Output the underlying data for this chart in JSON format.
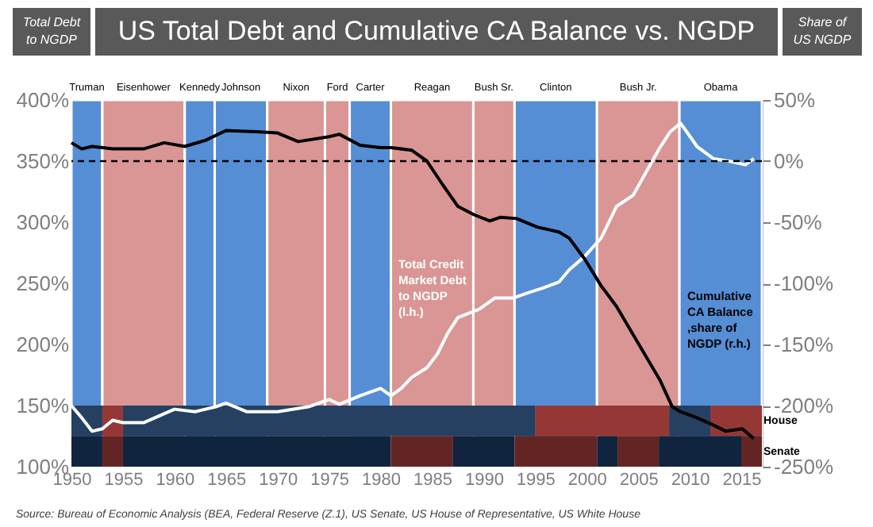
{
  "chart_data": {
    "type": "line",
    "title": "US Total Debt and Cumulative CA Balance vs. NGDP",
    "ylabel": "Total Debt to NGDP",
    "y2label": "Share of US NGDP",
    "xlim": [
      1950,
      2017
    ],
    "xticks": [
      1950,
      1955,
      1960,
      1965,
      1970,
      1975,
      1980,
      1985,
      1990,
      1995,
      2000,
      2005,
      2010,
      2015
    ],
    "ylim": [
      100,
      400
    ],
    "yticks": [
      {
        "value": 100,
        "label": "100%"
      },
      {
        "value": 150,
        "label": "150%"
      },
      {
        "value": 200,
        "label": "200%"
      },
      {
        "value": 250,
        "label": "250%"
      },
      {
        "value": 300,
        "label": "300%"
      },
      {
        "value": 350,
        "label": "350%"
      },
      {
        "value": 400,
        "label": "400%"
      }
    ],
    "y2lim": [
      -250,
      50
    ],
    "y2ticks": [
      {
        "value": -250,
        "label": "-250%"
      },
      {
        "value": -200,
        "label": "-200%"
      },
      {
        "value": -150,
        "label": "-150%"
      },
      {
        "value": -100,
        "label": "-100%"
      },
      {
        "value": -50,
        "label": "-50%"
      },
      {
        "value": 0,
        "label": "0%"
      },
      {
        "value": 50,
        "label": "50%"
      }
    ],
    "grid": false,
    "legend": false,
    "marker": "none",
    "line_style": "solid",
    "series": [
      {
        "name": "Total Credit Market Debt to NGDP (l.h.)",
        "color": "#ffffff",
        "x": [
          1950,
          1951,
          1952,
          1953,
          1954,
          1955,
          1957,
          1960,
          1962,
          1964,
          1965,
          1967,
          1970,
          1973,
          1975,
          1976,
          1978,
          1980,
          1981,
          1982,
          1983,
          1984.5,
          1985.5,
          1986.5,
          1987.5,
          1989.6,
          1991.1,
          1992.9,
          1994.2,
          1995.7,
          1997.3,
          1998.3,
          1999.8,
          2001.4,
          2002.9,
          2004.5,
          2005.5,
          2007.1,
          2008.1,
          2009.1,
          2009.7,
          2010.7,
          2012.3,
          2013.8,
          2015.4,
          2016.2
        ],
        "values": [
          150,
          140,
          129,
          131,
          138,
          136,
          136,
          147,
          145,
          149,
          152,
          145,
          145,
          149,
          155,
          151,
          158,
          164,
          158,
          164,
          173,
          181,
          192,
          209,
          222,
          229,
          238,
          238,
          242,
          246,
          251,
          261,
          272,
          287,
          313,
          322,
          337,
          361,
          374,
          381,
          374,
          362,
          352,
          350,
          347,
          352
        ]
      },
      {
        "name": "Cumulative CA Balance ,share of NGDP (r.h.)",
        "color": "#000000",
        "axis": "y2",
        "x": [
          1950,
          1951,
          1952,
          1954,
          1957,
          1959,
          1961,
          1963,
          1965,
          1968,
          1970,
          1972,
          1975,
          1976,
          1978,
          1980,
          1981,
          1983,
          1984.5,
          1986,
          1987.5,
          1989.1,
          1990.6,
          1991.6,
          1993.2,
          1995.2,
          1997.3,
          1998.3,
          1999.8,
          2001.4,
          2002.9,
          2005,
          2007.1,
          2008.3,
          2009.1,
          2010.7,
          2012.3,
          2013.5,
          2015.1,
          2016.2
        ],
        "values": [
          15,
          10,
          12,
          10,
          10,
          15,
          12,
          17,
          25,
          24,
          23,
          16,
          20,
          22,
          13,
          11,
          11,
          9,
          0,
          -19,
          -37,
          -44,
          -49,
          -46,
          -47,
          -54,
          -58,
          -63,
          -80,
          -102,
          -119,
          -149,
          -179,
          -201,
          -205,
          -210,
          -216,
          -221,
          -219,
          -227
        ]
      }
    ],
    "ref_lines": [
      {
        "axis": "y2",
        "value": 0,
        "color": "#000000",
        "line_style": "dashed"
      }
    ],
    "bands": [
      {
        "axis": "x",
        "from": 1950,
        "to": 1953,
        "label": "Truman",
        "color": "#558ed5"
      },
      {
        "axis": "x",
        "from": 1953,
        "to": 1961,
        "label": "Eisenhower",
        "color": "#d99694"
      },
      {
        "axis": "x",
        "from": 1961,
        "to": 1963.9,
        "label": "Kennedy",
        "color": "#558ed5"
      },
      {
        "axis": "x",
        "from": 1963.9,
        "to": 1969,
        "label": "Johnson",
        "color": "#558ed5"
      },
      {
        "axis": "x",
        "from": 1969,
        "to": 1974.6,
        "label": "Nixon",
        "color": "#d99694"
      },
      {
        "axis": "x",
        "from": 1974.6,
        "to": 1977,
        "label": "Ford",
        "color": "#d99694"
      },
      {
        "axis": "x",
        "from": 1977,
        "to": 1981,
        "label": "Carter",
        "color": "#558ed5"
      },
      {
        "axis": "x",
        "from": 1981,
        "to": 1989,
        "label": "Reagan",
        "color": "#d99694"
      },
      {
        "axis": "x",
        "from": 1989,
        "to": 1993,
        "label": "Bush Sr.",
        "color": "#d99694"
      },
      {
        "axis": "x",
        "from": 1993,
        "to": 2001,
        "label": "Clinton",
        "color": "#558ed5"
      },
      {
        "axis": "x",
        "from": 2001,
        "to": 2009,
        "label": "Bush Jr.",
        "color": "#d99694"
      },
      {
        "axis": "x",
        "from": 2009,
        "to": 2017,
        "label": "Obama",
        "color": "#558ed5"
      },
      {
        "axis": "x",
        "from": 1950,
        "to": 1953,
        "color": "#254061"
      },
      {
        "axis": "x",
        "from": 1953,
        "to": 1955,
        "color": "#953735"
      },
      {
        "axis": "x",
        "from": 1955,
        "to": 1995,
        "color": "#254061"
      },
      {
        "axis": "x",
        "from": 1995,
        "to": 2008,
        "color": "#953735"
      },
      {
        "axis": "x",
        "from": 2008,
        "to": 2012,
        "color": "#254061"
      },
      {
        "axis": "x",
        "from": 2012,
        "to": 2017,
        "label": "House",
        "color": "#953735"
      },
      {
        "axis": "x",
        "from": 1950,
        "to": 1953,
        "color": "#10243e"
      },
      {
        "axis": "x",
        "from": 1953,
        "to": 1955,
        "color": "#632523"
      },
      {
        "axis": "x",
        "from": 1955,
        "to": 1981,
        "color": "#10243e"
      },
      {
        "axis": "x",
        "from": 1981,
        "to": 1987,
        "color": "#632523"
      },
      {
        "axis": "x",
        "from": 1987,
        "to": 1993,
        "color": "#10243e"
      },
      {
        "axis": "x",
        "from": 1993,
        "to": 2001,
        "color": "#632523"
      },
      {
        "axis": "x",
        "from": 2001,
        "to": 2003,
        "color": "#10243e"
      },
      {
        "axis": "x",
        "from": 2003,
        "to": 2007,
        "color": "#632523"
      },
      {
        "axis": "x",
        "from": 2007,
        "to": 2015,
        "color": "#10243e"
      },
      {
        "axis": "x",
        "from": 2015,
        "to": 2017,
        "label": "Senate",
        "color": "#632523"
      }
    ],
    "annotations": [
      "Source: Bureau of Economic Analysis (BEA, Federal Reserve (Z.1), US Senate, US House of Representative, US White House"
    ]
  }
}
